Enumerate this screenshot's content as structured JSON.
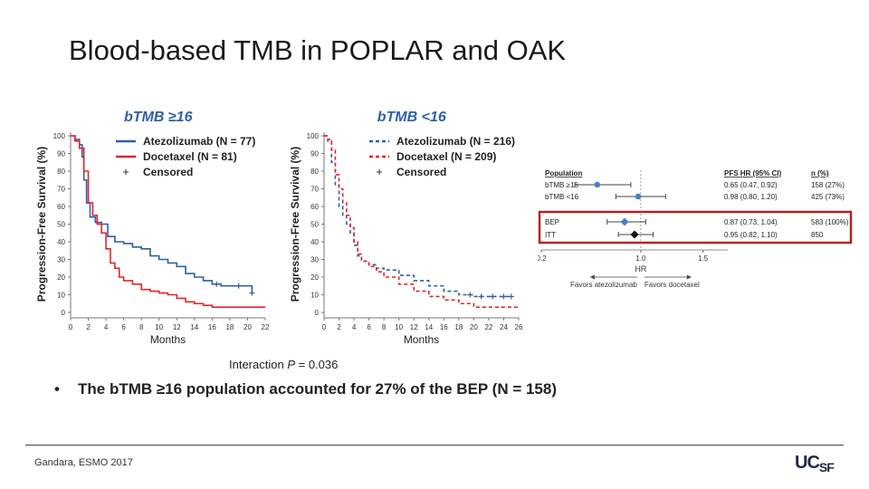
{
  "slide_title": "Blood-based TMB in POPLAR and OAK",
  "bullet": "The bTMB ≥16 population accounted for 27% of the BEP (N = 158)",
  "interaction": {
    "prefix": "Interaction ",
    "p_label": "P",
    "suffix": " = 0.036"
  },
  "footer": "Gandara, ESMO 2017",
  "logo": {
    "main": "UC",
    "small": "SF"
  },
  "colors": {
    "atezolizumab": "#2f5fa7",
    "docetaxel": "#e0262a",
    "highlight_box": "#c0181e"
  },
  "chart_data": [
    {
      "type": "line",
      "title": "bTMB ≥16",
      "xlabel": "Months",
      "ylabel": "Progression-Free Survival (%)",
      "xlim": [
        0,
        22
      ],
      "ylim": [
        0,
        100
      ],
      "xticks": [
        0,
        2,
        4,
        6,
        8,
        10,
        12,
        14,
        16,
        18,
        20,
        22
      ],
      "yticks": [
        0,
        10,
        20,
        30,
        40,
        50,
        60,
        70,
        80,
        90,
        100
      ],
      "line_style": "solid",
      "legend": [
        "Atezolizumab (N = 77)",
        "Docetaxel (N = 81)",
        "Censored"
      ],
      "series": [
        {
          "name": "Atezolizumab (N = 77)",
          "color": "#2f5fa7",
          "x": [
            0,
            0.5,
            1,
            1.3,
            1.5,
            1.8,
            2.2,
            2.8,
            3.5,
            4.2,
            5,
            6,
            7,
            8,
            9,
            10,
            11,
            12,
            13,
            14,
            15,
            16,
            17,
            18,
            19,
            20,
            20.5
          ],
          "y": [
            100,
            98,
            95,
            88,
            75,
            62,
            54,
            51,
            50,
            43,
            40,
            39,
            37,
            36,
            32,
            30,
            28,
            26,
            22,
            20,
            18,
            16,
            15,
            15,
            15,
            15,
            11
          ],
          "censored_x": [
            16.5,
            19,
            20.5
          ]
        },
        {
          "name": "Docetaxel (N = 81)",
          "color": "#e0262a",
          "x": [
            0,
            0.5,
            1,
            1.5,
            2,
            2.5,
            3,
            3.5,
            4,
            4.5,
            5,
            5.5,
            6,
            7,
            8,
            9,
            10,
            11,
            12,
            13,
            14,
            15,
            16,
            18,
            20,
            22
          ],
          "y": [
            100,
            97,
            93,
            80,
            62,
            55,
            50,
            45,
            36,
            28,
            25,
            20,
            18,
            16,
            13,
            12,
            11,
            10,
            8,
            6,
            5,
            4,
            3,
            3,
            3,
            3
          ],
          "censored_x": []
        }
      ]
    },
    {
      "type": "line",
      "title": "bTMB <16",
      "xlabel": "Months",
      "ylabel": "Progression-Free Survival (%)",
      "xlim": [
        0,
        26
      ],
      "ylim": [
        0,
        100
      ],
      "xticks": [
        0,
        2,
        4,
        6,
        8,
        10,
        12,
        14,
        16,
        18,
        20,
        22,
        24,
        26
      ],
      "yticks": [
        0,
        10,
        20,
        30,
        40,
        50,
        60,
        70,
        80,
        90,
        100
      ],
      "line_style": "dashed",
      "legend": [
        "Atezolizumab (N = 216)",
        "Docetaxel (N = 209)",
        "Censored"
      ],
      "series": [
        {
          "name": "Atezolizumab (N = 216)",
          "color": "#2f5fa7",
          "x": [
            0,
            0.5,
            1,
            1.5,
            2,
            2.5,
            3,
            3.5,
            4,
            4.5,
            5,
            6,
            7,
            8,
            10,
            12,
            14,
            16,
            18,
            19,
            20,
            22,
            24,
            25
          ],
          "y": [
            100,
            97,
            85,
            72,
            60,
            55,
            50,
            45,
            38,
            32,
            29,
            27,
            25,
            24,
            21,
            18,
            15,
            12,
            10,
            10,
            9,
            9,
            9,
            9
          ],
          "censored_x": [
            19.5,
            21,
            22.5,
            24,
            25
          ]
        },
        {
          "name": "Docetaxel (N = 209)",
          "color": "#e0262a",
          "x": [
            0,
            0.5,
            1,
            1.5,
            2,
            2.5,
            3,
            3.5,
            4,
            4.5,
            5,
            6,
            7,
            8,
            10,
            12,
            14,
            16,
            18,
            20,
            22,
            24,
            26
          ],
          "y": [
            100,
            98,
            92,
            78,
            70,
            62,
            55,
            48,
            40,
            33,
            29,
            26,
            23,
            20,
            16,
            12,
            9,
            7,
            5,
            3,
            3,
            3,
            3
          ],
          "censored_x": []
        }
      ]
    },
    {
      "type": "forest",
      "xlabel": "HR",
      "xticks": [
        0.2,
        1.0,
        1.5
      ],
      "xlim": [
        0.2,
        1.7
      ],
      "reference": 1.0,
      "favors_left": "Favors atezolizumab",
      "favors_right": "Favors docetaxel",
      "headers": {
        "population": "Population",
        "hr": "PFS HR (95% CI)",
        "n": "n (%)"
      },
      "rows": [
        {
          "label": "bTMB ≥16",
          "hr": 0.65,
          "lo": 0.47,
          "hi": 0.92,
          "hr_text": "0.65 (0.47, 0.92)",
          "n_text": "158 (27%)",
          "marker": "circle",
          "highlight": false
        },
        {
          "label": "bTMB <16",
          "hr": 0.98,
          "lo": 0.8,
          "hi": 1.2,
          "hr_text": "0.98 (0.80, 1.20)",
          "n_text": "425 (73%)",
          "marker": "circle",
          "highlight": false
        },
        {
          "label": "BEP",
          "hr": 0.87,
          "lo": 0.73,
          "hi": 1.04,
          "hr_text": "0.87 (0.73, 1.04)",
          "n_text": "583 (100%)",
          "marker": "diamond-blue",
          "highlight": true
        },
        {
          "label": "ITT",
          "hr": 0.95,
          "lo": 0.82,
          "hi": 1.1,
          "hr_text": "0.95 (0.82, 1.10)",
          "n_text": "850",
          "marker": "diamond-black",
          "highlight": true
        }
      ]
    }
  ]
}
